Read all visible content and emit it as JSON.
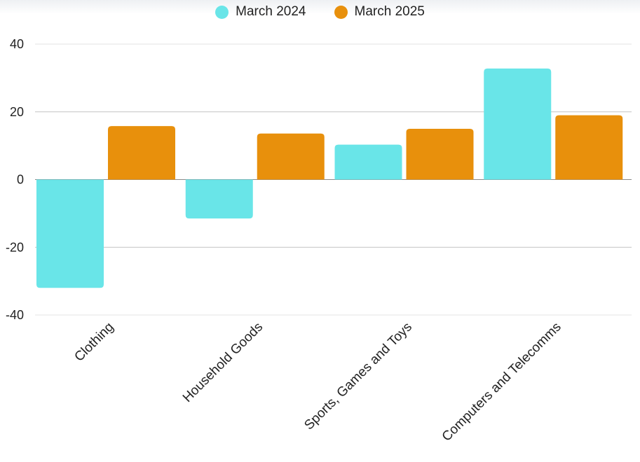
{
  "chart_data": {
    "type": "bar",
    "categories": [
      "Clothing",
      "Household Goods",
      "Sports, Games and Toys",
      "Computers and Telecomms"
    ],
    "series": [
      {
        "name": "March 2024",
        "values": [
          -32,
          -11.5,
          10.3,
          32.8
        ],
        "color": "#69e5e8"
      },
      {
        "name": "March 2025",
        "values": [
          15.8,
          13.6,
          15.0,
          19.0
        ],
        "color": "#e8900c"
      }
    ],
    "ylim": [
      -40,
      40
    ],
    "yticks": [
      "40",
      "20",
      "0",
      "-20",
      "-40"
    ],
    "ytick_values": [
      40,
      20,
      0,
      -20,
      -40
    ],
    "grid": true,
    "legend_position": "top-center",
    "title": "",
    "xlabel": "",
    "ylabel": ""
  }
}
